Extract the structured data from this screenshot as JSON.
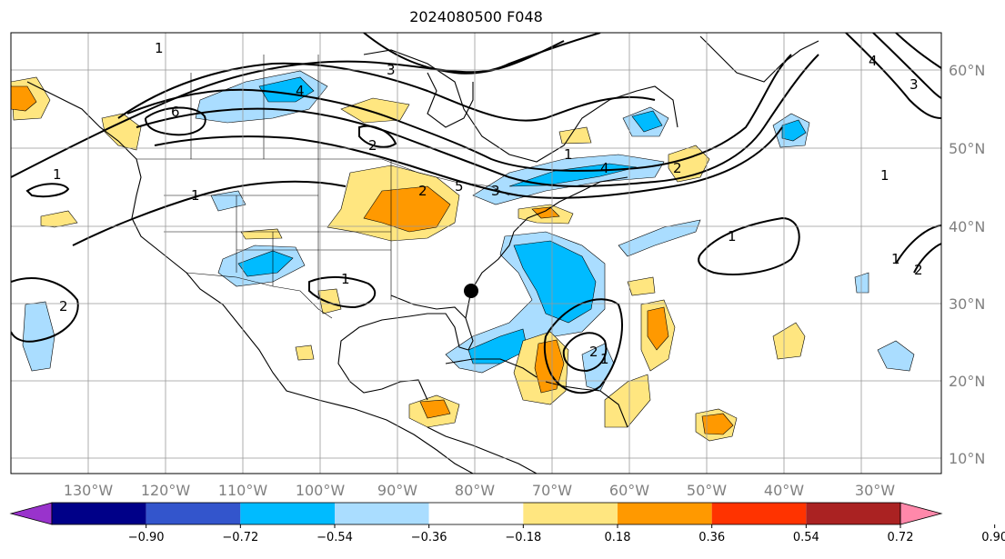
{
  "title": "2024080500 F048",
  "lat_labels": [
    "60°N",
    "50°N",
    "40°N",
    "30°N",
    "20°N",
    "10°N"
  ],
  "lon_labels": [
    "130°W",
    "120°W",
    "110°W",
    "100°W",
    "90°W",
    "80°W",
    "70°W",
    "60°W",
    "50°W",
    "40°W",
    "30°W"
  ],
  "colorbar": {
    "ticks": [
      "−0.90",
      "−0.72",
      "−0.54",
      "−0.36",
      "−0.18",
      "0.18",
      "0.36",
      "0.54",
      "0.72",
      "0.90"
    ],
    "colors": [
      "#9933cc",
      "#000088",
      "#3355cc",
      "#00bbff",
      "#aaddff",
      "#ffffff",
      "#ffe680",
      "#ff9900",
      "#ff3300",
      "#aa2222",
      "#ff88aa"
    ]
  },
  "contour_labels": [
    "1",
    "6",
    "2",
    "1",
    "3",
    "4",
    "1",
    "1",
    "2",
    "1",
    "1",
    "4",
    "3",
    "2",
    "1",
    "2",
    "2",
    "1",
    "1",
    "2",
    "3",
    "4",
    "5"
  ],
  "marker": "storm-center"
}
